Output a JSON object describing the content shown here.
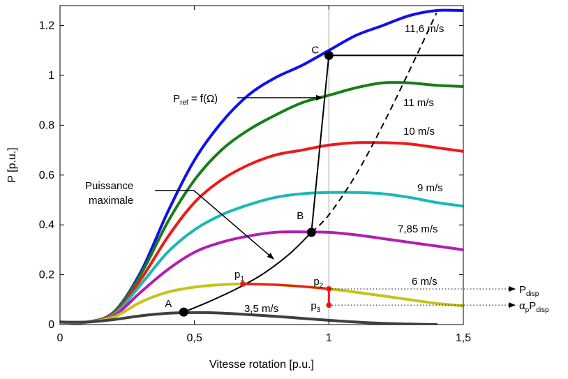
{
  "chart_data": {
    "type": "line",
    "xlabel": "Vitesse rotation [p.u.]",
    "ylabel": "P [p.u.]",
    "xlim": [
      0,
      1.5
    ],
    "ylim": [
      0,
      1.28
    ],
    "x_ticks": [
      {
        "value": 0,
        "label": "0"
      },
      {
        "value": 0.5,
        "label": "0,5"
      },
      {
        "value": 1,
        "label": "1"
      },
      {
        "value": 1.5,
        "label": "1,5"
      }
    ],
    "y_ticks": [
      {
        "value": 0,
        "label": "0"
      },
      {
        "value": 0.2,
        "label": "0.2"
      },
      {
        "value": 0.4,
        "label": "0.4"
      },
      {
        "value": 0.6,
        "label": "0.6"
      },
      {
        "value": 0.8,
        "label": "0.8"
      },
      {
        "value": 1,
        "label": "1"
      },
      {
        "value": 1.2,
        "label": "1.2"
      }
    ],
    "grid": false,
    "series": [
      {
        "name": "11,6 m/s",
        "color": "#1010ee",
        "points": [
          [
            0,
            0.01
          ],
          [
            0.1,
            0.01
          ],
          [
            0.2,
            0.05
          ],
          [
            0.3,
            0.21
          ],
          [
            0.4,
            0.45
          ],
          [
            0.5,
            0.66
          ],
          [
            0.6,
            0.81
          ],
          [
            0.7,
            0.92
          ],
          [
            0.8,
            0.99
          ],
          [
            0.9,
            1.04
          ],
          [
            1.0,
            1.1
          ],
          [
            1.1,
            1.16
          ],
          [
            1.2,
            1.2
          ],
          [
            1.3,
            1.24
          ],
          [
            1.4,
            1.26
          ],
          [
            1.5,
            1.26
          ]
        ]
      },
      {
        "name": "11 m/s",
        "color": "#158015",
        "points": [
          [
            0,
            0.01
          ],
          [
            0.1,
            0.01
          ],
          [
            0.2,
            0.05
          ],
          [
            0.3,
            0.2
          ],
          [
            0.4,
            0.41
          ],
          [
            0.5,
            0.58
          ],
          [
            0.6,
            0.7
          ],
          [
            0.7,
            0.78
          ],
          [
            0.8,
            0.84
          ],
          [
            0.9,
            0.89
          ],
          [
            1.0,
            0.92
          ],
          [
            1.1,
            0.95
          ],
          [
            1.2,
            0.97
          ],
          [
            1.3,
            0.97
          ],
          [
            1.4,
            0.96
          ],
          [
            1.5,
            0.955
          ]
        ]
      },
      {
        "name": "10 m/s",
        "color": "#ee1a1a",
        "points": [
          [
            0,
            0.01
          ],
          [
            0.1,
            0.01
          ],
          [
            0.2,
            0.045
          ],
          [
            0.3,
            0.18
          ],
          [
            0.4,
            0.35
          ],
          [
            0.5,
            0.49
          ],
          [
            0.6,
            0.58
          ],
          [
            0.7,
            0.64
          ],
          [
            0.8,
            0.68
          ],
          [
            0.9,
            0.7
          ],
          [
            1.0,
            0.72
          ],
          [
            1.1,
            0.73
          ],
          [
            1.2,
            0.73
          ],
          [
            1.3,
            0.725
          ],
          [
            1.4,
            0.71
          ],
          [
            1.5,
            0.695
          ]
        ]
      },
      {
        "name": "9 m/s",
        "color": "#1ab8b8",
        "points": [
          [
            0,
            0.01
          ],
          [
            0.1,
            0.01
          ],
          [
            0.2,
            0.04
          ],
          [
            0.3,
            0.16
          ],
          [
            0.4,
            0.29
          ],
          [
            0.5,
            0.38
          ],
          [
            0.6,
            0.44
          ],
          [
            0.7,
            0.48
          ],
          [
            0.8,
            0.51
          ],
          [
            0.9,
            0.525
          ],
          [
            1.0,
            0.53
          ],
          [
            1.1,
            0.53
          ],
          [
            1.2,
            0.525
          ],
          [
            1.3,
            0.51
          ],
          [
            1.4,
            0.49
          ],
          [
            1.5,
            0.475
          ]
        ]
      },
      {
        "name": "7,85 m/s",
        "color": "#b020b0",
        "points": [
          [
            0,
            0.01
          ],
          [
            0.1,
            0.01
          ],
          [
            0.2,
            0.035
          ],
          [
            0.3,
            0.13
          ],
          [
            0.4,
            0.22
          ],
          [
            0.5,
            0.29
          ],
          [
            0.6,
            0.33
          ],
          [
            0.7,
            0.355
          ],
          [
            0.8,
            0.37
          ],
          [
            0.9,
            0.372
          ],
          [
            1.0,
            0.37
          ],
          [
            1.1,
            0.36
          ],
          [
            1.2,
            0.345
          ],
          [
            1.3,
            0.33
          ],
          [
            1.4,
            0.315
          ],
          [
            1.5,
            0.3
          ]
        ]
      },
      {
        "name": "6 m/s",
        "color": "#c8c21a",
        "points": [
          [
            0,
            0.01
          ],
          [
            0.1,
            0.01
          ],
          [
            0.2,
            0.03
          ],
          [
            0.3,
            0.09
          ],
          [
            0.4,
            0.13
          ],
          [
            0.5,
            0.15
          ],
          [
            0.6,
            0.16
          ],
          [
            0.7,
            0.163
          ],
          [
            0.8,
            0.16
          ],
          [
            0.9,
            0.153
          ],
          [
            1.0,
            0.143
          ],
          [
            1.1,
            0.13
          ],
          [
            1.2,
            0.115
          ],
          [
            1.3,
            0.1
          ],
          [
            1.4,
            0.085
          ],
          [
            1.5,
            0.075
          ]
        ]
      },
      {
        "name": "3,5 m/s",
        "color": "#404040",
        "points": [
          [
            0,
            0.01
          ],
          [
            0.1,
            0.01
          ],
          [
            0.2,
            0.02
          ],
          [
            0.3,
            0.035
          ],
          [
            0.4,
            0.045
          ],
          [
            0.5,
            0.048
          ],
          [
            0.6,
            0.046
          ],
          [
            0.7,
            0.04
          ],
          [
            0.8,
            0.033
          ],
          [
            0.9,
            0.025
          ],
          [
            1.0,
            0.017
          ],
          [
            1.1,
            0.01
          ],
          [
            1.2,
            0.005
          ],
          [
            1.3,
            0.002
          ],
          [
            1.4,
            0.0
          ]
        ]
      }
    ],
    "curves": [
      {
        "name": "Puissance maximale",
        "style": "solid",
        "color": "#000000",
        "points": [
          [
            0.46,
            0.05
          ],
          [
            0.55,
            0.09
          ],
          [
            0.65,
            0.14
          ],
          [
            0.75,
            0.2
          ],
          [
            0.85,
            0.28
          ],
          [
            0.935,
            0.37
          ]
        ]
      },
      {
        "name": "Puissance maximale (extension)",
        "style": "dashed",
        "color": "#000000",
        "points": [
          [
            0.935,
            0.37
          ],
          [
            1.0,
            0.44
          ],
          [
            1.1,
            0.6
          ],
          [
            1.2,
            0.8
          ],
          [
            1.3,
            1.02
          ],
          [
            1.4,
            1.25
          ]
        ]
      },
      {
        "name": "Pref = f(Ω)",
        "style": "solid",
        "color": "#000000",
        "points": [
          [
            0.935,
            0.37
          ],
          [
            1.0,
            1.08
          ],
          [
            1.5,
            1.08
          ]
        ]
      },
      {
        "name": "trajet p1-p2-p3",
        "style": "solid",
        "color": "#ee1a1a",
        "points": [
          [
            0.68,
            0.163
          ],
          [
            0.8,
            0.16
          ],
          [
            0.9,
            0.153
          ],
          [
            1.0,
            0.143
          ],
          [
            1.0,
            0.078
          ]
        ]
      }
    ],
    "reference_line_x": 1.0,
    "points": [
      {
        "label": "A",
        "x": 0.46,
        "y": 0.05,
        "color": "#000000"
      },
      {
        "label": "B",
        "x": 0.935,
        "y": 0.37,
        "color": "#000000"
      },
      {
        "label": "C",
        "x": 1.0,
        "y": 1.08,
        "color": "#000000"
      },
      {
        "label": "p1",
        "x": 0.68,
        "y": 0.163,
        "color": "#ee1a1a"
      },
      {
        "label": "p2",
        "x": 1.0,
        "y": 0.143,
        "color": "#ee1a1a"
      },
      {
        "label": "p3",
        "x": 1.0,
        "y": 0.078,
        "color": "#ee1a1a"
      }
    ],
    "dotted_arrows": [
      {
        "from_point": "p2",
        "label_main": "P",
        "label_sub": "disp"
      },
      {
        "from_point": "p3",
        "label_main": "α",
        "label_sub": "p",
        "label_main2": "P",
        "label_sub2": "disp"
      }
    ],
    "annotations": {
      "pref_main": "P",
      "pref_sub": "ref",
      "pref_rest": " = f(Ω)",
      "puissance_line1": "Puissance",
      "puissance_line2": "maximale"
    }
  }
}
